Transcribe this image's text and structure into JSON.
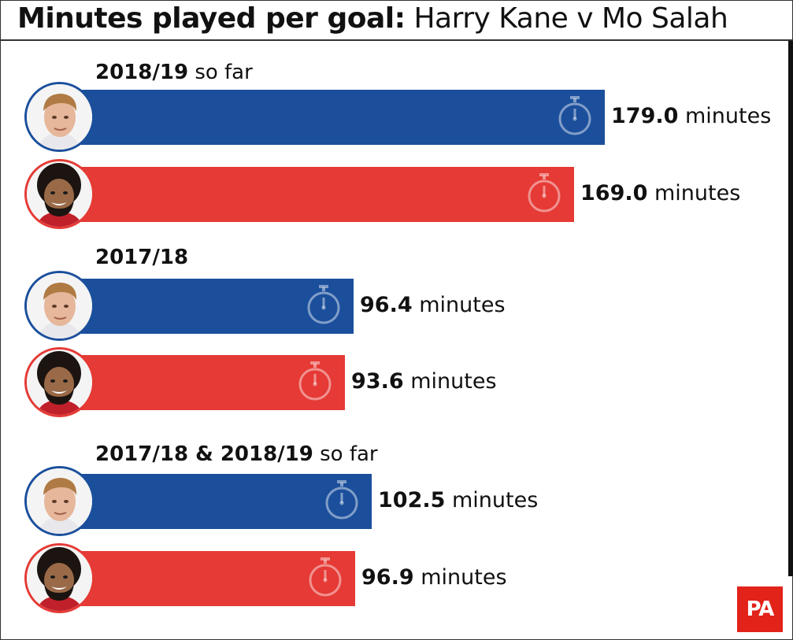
{
  "title": {
    "bold": "Minutes played per goal:",
    "regular": "Harry Kane v Mo Salah"
  },
  "colors": {
    "kane": "#1b4f9c",
    "salah": "#e53a35",
    "pa_logo": "#e2231a"
  },
  "icons": {
    "player_avatar": "player-face-icon",
    "bar_marker": "stopwatch-icon"
  },
  "logo_text": "PA",
  "chart_data": {
    "type": "bar",
    "orientation": "horizontal",
    "unit": "minutes",
    "xlim": [
      0,
      229
    ],
    "groups": [
      {
        "label_bold": "2018/19",
        "label_regular": "so far",
        "bars": [
          {
            "player": "kane",
            "value": 179.0,
            "value_text": "179.0",
            "unit": "minutes"
          },
          {
            "player": "salah",
            "value": 169.0,
            "value_text": "169.0",
            "unit": "minutes"
          }
        ]
      },
      {
        "label_bold": "2017/18",
        "label_regular": "",
        "bars": [
          {
            "player": "kane",
            "value": 96.4,
            "value_text": "96.4",
            "unit": "minutes"
          },
          {
            "player": "salah",
            "value": 93.6,
            "value_text": "93.6",
            "unit": "minutes"
          }
        ]
      },
      {
        "label_bold": "2017/18 & 2018/19",
        "label_regular": "so far",
        "bars": [
          {
            "player": "kane",
            "value": 102.5,
            "value_text": "102.5",
            "unit": "minutes"
          },
          {
            "player": "salah",
            "value": 96.9,
            "value_text": "96.9",
            "unit": "minutes"
          }
        ]
      }
    ]
  }
}
